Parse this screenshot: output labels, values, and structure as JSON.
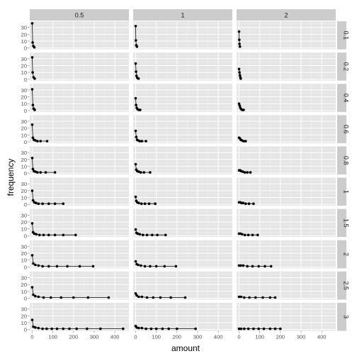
{
  "chart_data": {
    "type": "line",
    "xlabel": "amount",
    "ylabel": "frequency",
    "col_facets": [
      "0.5",
      "1",
      "2"
    ],
    "row_facets": [
      "0.1",
      "0.2",
      "0.4",
      "0.6",
      "0.8",
      "1",
      "1.5",
      "2",
      "2.5",
      "3"
    ],
    "xlim": [
      -12,
      468
    ],
    "ylim": [
      -2,
      39
    ],
    "x_ticks": [
      0,
      100,
      200,
      300,
      400
    ],
    "y_ticks": [
      0,
      10,
      20,
      30
    ],
    "grid": true,
    "legend": "none",
    "panels": [
      [
        {
          "x": [
            0,
            2,
            5,
            10
          ],
          "y": [
            36,
            8,
            3,
            1
          ]
        },
        {
          "x": [
            0,
            2,
            6,
            12
          ],
          "y": [
            32,
            10,
            3,
            1
          ]
        },
        {
          "x": [
            0,
            3,
            6,
            9,
            12
          ],
          "y": [
            31,
            8,
            3,
            2,
            1
          ]
        },
        {
          "x": [
            0,
            3,
            8,
            15,
            25,
            40,
            72
          ],
          "y": [
            25,
            6,
            3,
            2,
            1,
            1,
            1
          ]
        },
        {
          "x": [
            0,
            3,
            8,
            15,
            25,
            40,
            65,
            110
          ],
          "y": [
            22,
            6,
            3,
            2,
            1,
            1,
            1,
            1
          ]
        },
        {
          "x": [
            0,
            4,
            10,
            18,
            30,
            50,
            80,
            110,
            150
          ],
          "y": [
            20,
            6,
            3,
            2,
            1,
            1,
            1,
            1,
            1
          ]
        },
        {
          "x": [
            0,
            4,
            10,
            20,
            35,
            55,
            80,
            110,
            150,
            210
          ],
          "y": [
            18,
            5,
            3,
            2,
            1,
            1,
            1,
            1,
            1,
            1
          ]
        },
        {
          "x": [
            0,
            5,
            15,
            30,
            50,
            80,
            120,
            170,
            230,
            295
          ],
          "y": [
            17,
            5,
            3,
            2,
            1,
            1,
            1,
            1,
            1,
            1
          ]
        },
        {
          "x": [
            0,
            5,
            15,
            30,
            55,
            90,
            140,
            200,
            270,
            370
          ],
          "y": [
            16,
            5,
            3,
            2,
            1,
            1,
            1,
            1,
            1,
            1
          ]
        },
        {
          "x": [
            0,
            5,
            15,
            30,
            50,
            70,
            95,
            120,
            150,
            180,
            215,
            265,
            330,
            440
          ],
          "y": [
            14,
            4,
            3,
            2,
            1,
            1,
            1,
            1,
            1,
            1,
            1,
            1,
            1,
            1
          ]
        }
      ],
      [
        {
          "x": [
            0,
            1,
            3,
            6
          ],
          "y": [
            32,
            11,
            4,
            2
          ]
        },
        {
          "x": [
            0,
            2,
            4,
            8,
            14
          ],
          "y": [
            23,
            11,
            5,
            2,
            1
          ]
        },
        {
          "x": [
            0,
            2,
            5,
            9,
            15,
            22
          ],
          "y": [
            18,
            8,
            4,
            2,
            1,
            1
          ]
        },
        {
          "x": [
            0,
            3,
            7,
            12,
            20,
            30,
            50
          ],
          "y": [
            16,
            7,
            3,
            2,
            1,
            1,
            1
          ]
        },
        {
          "x": [
            0,
            3,
            8,
            15,
            25,
            40,
            70
          ],
          "y": [
            13,
            5,
            3,
            2,
            1,
            1,
            1
          ]
        },
        {
          "x": [
            0,
            3,
            8,
            15,
            28,
            45,
            65,
            95
          ],
          "y": [
            11,
            5,
            3,
            2,
            1,
            1,
            1,
            1
          ]
        },
        {
          "x": [
            0,
            4,
            10,
            20,
            35,
            55,
            80,
            105,
            145
          ],
          "y": [
            9,
            4,
            3,
            2,
            1,
            1,
            1,
            1,
            1
          ]
        },
        {
          "x": [
            0,
            5,
            12,
            25,
            45,
            70,
            100,
            140,
            195
          ],
          "y": [
            8,
            4,
            3,
            2,
            1,
            1,
            1,
            1,
            1
          ]
        },
        {
          "x": [
            0,
            5,
            15,
            30,
            55,
            85,
            120,
            170,
            240
          ],
          "y": [
            7,
            4,
            2,
            2,
            1,
            1,
            1,
            1,
            1
          ]
        },
        {
          "x": [
            0,
            5,
            15,
            30,
            50,
            75,
            100,
            130,
            160,
            200,
            290
          ],
          "y": [
            5,
            3,
            2,
            2,
            1,
            1,
            1,
            1,
            1,
            1,
            1
          ]
        }
      ],
      [
        {
          "x": [
            0,
            1,
            2,
            4
          ],
          "y": [
            24,
            12,
            6,
            2
          ]
        },
        {
          "x": [
            0,
            2,
            4,
            6,
            8
          ],
          "y": [
            15,
            10,
            6,
            3,
            1
          ]
        },
        {
          "x": [
            0,
            3,
            6,
            10,
            15,
            22
          ],
          "y": [
            10,
            7,
            4,
            2,
            1,
            1
          ]
        },
        {
          "x": [
            0,
            4,
            8,
            14,
            22,
            32
          ],
          "y": [
            6,
            5,
            3,
            2,
            1,
            1
          ]
        },
        {
          "x": [
            0,
            5,
            10,
            18,
            28,
            40,
            55
          ],
          "y": [
            4,
            4,
            3,
            2,
            1,
            1,
            1
          ]
        },
        {
          "x": [
            0,
            5,
            12,
            20,
            32,
            48,
            70
          ],
          "y": [
            3,
            3,
            2,
            2,
            1,
            1,
            1
          ]
        },
        {
          "x": [
            0,
            6,
            15,
            28,
            45,
            65,
            90
          ],
          "y": [
            3,
            3,
            2,
            1,
            1,
            1,
            1
          ]
        },
        {
          "x": [
            0,
            8,
            20,
            40,
            65,
            95,
            125,
            155
          ],
          "y": [
            2,
            2,
            2,
            1,
            1,
            1,
            1,
            1
          ]
        },
        {
          "x": [
            0,
            10,
            25,
            50,
            80,
            115,
            150,
            175
          ],
          "y": [
            2,
            2,
            1,
            1,
            1,
            1,
            1,
            1
          ]
        },
        {
          "x": [
            0,
            10,
            25,
            45,
            70,
            95,
            120,
            150,
            175,
            200
          ],
          "y": [
            1,
            1,
            1,
            1,
            1,
            1,
            1,
            1,
            1,
            1
          ]
        }
      ]
    ]
  }
}
